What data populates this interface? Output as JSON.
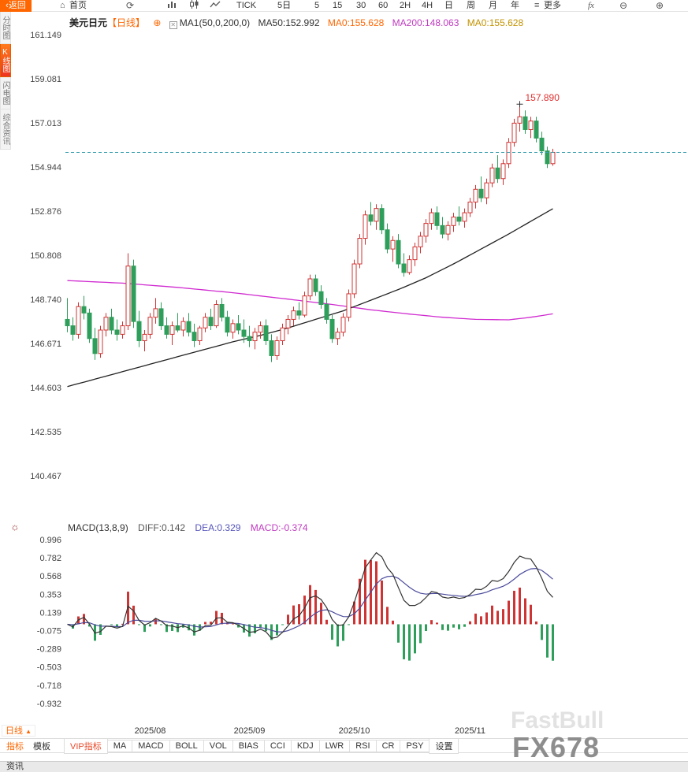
{
  "toolbar": {
    "back": "返回",
    "home": "首页",
    "periods": [
      "TICK",
      "5日",
      "5",
      "15",
      "30",
      "60",
      "2H",
      "4H",
      "日",
      "周",
      "月",
      "年"
    ],
    "more": "更多",
    "fx": "fx"
  },
  "sidebar": {
    "items": [
      {
        "label": "分时图"
      },
      {
        "label": "K线图"
      },
      {
        "label": "闪电图"
      },
      {
        "label": "综合资讯"
      }
    ],
    "active_index": 1
  },
  "chart_header": {
    "symbol": "美元日元",
    "period": "【日线】",
    "ma_settings": "MA1(50,0,200,0)",
    "ma50": "MA50:152.992",
    "ma0_a": "MA0:155.628",
    "ma200": "MA200:148.063",
    "ma0_b": "MA0:155.628"
  },
  "macd_header": {
    "title": "MACD(13,8,9)",
    "diff": "DIFF:0.142",
    "dea": "DEA:0.329",
    "macd": "MACD:-0.374"
  },
  "bottom": {
    "period_box": "日线",
    "tabs_left": [
      "指标",
      "模板"
    ],
    "tabs": [
      "VIP指标",
      "MA",
      "MACD",
      "BOLL",
      "VOL",
      "BIAS",
      "CCI",
      "KDJ",
      "LWR",
      "RSI",
      "CR",
      "PSY",
      "设置"
    ],
    "footer_tab": "资讯",
    "watermark": "FX678",
    "watermark_ghost": "FastBull"
  },
  "chart_data": {
    "type": "candlestick+macd",
    "symbol": "美元日元",
    "period": "日线",
    "y_axis_main": [
      "161.149",
      "159.081",
      "157.013",
      "154.944",
      "152.876",
      "150.808",
      "148.740",
      "146.671",
      "144.603",
      "142.535",
      "140.467"
    ],
    "y_axis_macd": [
      "0.996",
      "0.782",
      "0.568",
      "0.353",
      "0.139",
      "-0.075",
      "-0.289",
      "-0.503",
      "-0.718",
      "-0.932"
    ],
    "current_price": 155.628,
    "peak": {
      "index": 82,
      "price": 157.89,
      "label": "157.890"
    },
    "month_marks": [
      {
        "index": 15,
        "label": "2025/08"
      },
      {
        "index": 33,
        "label": "2025/09"
      },
      {
        "index": 52,
        "label": "2025/10"
      },
      {
        "index": 73,
        "label": "2025/11"
      }
    ],
    "macd_params": {
      "short": 8,
      "long": 13,
      "signal": 9
    },
    "candles": [
      [
        147.8,
        148.8,
        147.2,
        147.5
      ],
      [
        147.5,
        147.9,
        146.8,
        147.1
      ],
      [
        147.1,
        148.6,
        146.9,
        148.4
      ],
      [
        148.4,
        148.9,
        147.8,
        148.1
      ],
      [
        148.1,
        148.3,
        146.7,
        146.9
      ],
      [
        146.9,
        147.4,
        145.9,
        146.2
      ],
      [
        146.2,
        147.5,
        146.0,
        147.3
      ],
      [
        147.3,
        148.1,
        147.0,
        147.9
      ],
      [
        147.9,
        148.3,
        147.1,
        147.3
      ],
      [
        147.3,
        147.8,
        146.8,
        147.1
      ],
      [
        147.1,
        147.7,
        146.9,
        147.5
      ],
      [
        147.5,
        150.9,
        147.3,
        150.3
      ],
      [
        150.3,
        150.6,
        147.4,
        147.7
      ],
      [
        147.7,
        148.2,
        146.5,
        146.8
      ],
      [
        146.8,
        147.3,
        146.3,
        147.1
      ],
      [
        147.1,
        148.1,
        146.9,
        147.9
      ],
      [
        147.9,
        148.8,
        147.6,
        148.3
      ],
      [
        148.3,
        148.6,
        147.3,
        147.5
      ],
      [
        147.5,
        147.9,
        146.9,
        147.1
      ],
      [
        147.1,
        147.7,
        146.6,
        147.5
      ],
      [
        147.5,
        148.1,
        147.2,
        147.3
      ],
      [
        147.3,
        147.9,
        147.0,
        147.7
      ],
      [
        147.7,
        148.1,
        147.0,
        147.2
      ],
      [
        147.2,
        147.6,
        146.5,
        146.8
      ],
      [
        146.8,
        147.5,
        146.6,
        147.4
      ],
      [
        147.4,
        148.1,
        147.2,
        147.9
      ],
      [
        147.9,
        148.3,
        147.3,
        147.5
      ],
      [
        147.5,
        148.7,
        147.4,
        148.5
      ],
      [
        148.5,
        148.8,
        147.7,
        147.9
      ],
      [
        147.9,
        148.2,
        147.0,
        147.2
      ],
      [
        147.2,
        147.8,
        146.9,
        147.6
      ],
      [
        147.6,
        148.0,
        147.1,
        147.3
      ],
      [
        147.3,
        147.8,
        146.7,
        147.0
      ],
      [
        147.0,
        147.5,
        146.5,
        146.8
      ],
      [
        146.8,
        147.4,
        146.4,
        147.2
      ],
      [
        147.2,
        147.7,
        146.9,
        147.5
      ],
      [
        147.5,
        147.8,
        146.6,
        146.8
      ],
      [
        146.8,
        147.1,
        145.8,
        146.1
      ],
      [
        146.1,
        147.0,
        145.9,
        146.8
      ],
      [
        146.8,
        147.6,
        146.6,
        147.4
      ],
      [
        147.4,
        148.0,
        147.1,
        147.8
      ],
      [
        147.8,
        148.4,
        147.5,
        148.2
      ],
      [
        148.2,
        148.6,
        147.8,
        148.0
      ],
      [
        148.0,
        149.1,
        147.9,
        148.9
      ],
      [
        148.9,
        149.9,
        148.7,
        149.7
      ],
      [
        149.7,
        149.9,
        148.9,
        149.1
      ],
      [
        149.1,
        149.4,
        148.3,
        148.5
      ],
      [
        148.5,
        148.8,
        147.6,
        147.8
      ],
      [
        147.8,
        148.0,
        146.7,
        146.9
      ],
      [
        146.9,
        147.4,
        146.6,
        147.2
      ],
      [
        147.2,
        148.1,
        147.0,
        147.9
      ],
      [
        147.9,
        149.2,
        147.7,
        149.0
      ],
      [
        149.0,
        150.6,
        148.8,
        150.4
      ],
      [
        150.4,
        151.8,
        150.2,
        151.6
      ],
      [
        151.6,
        152.9,
        151.3,
        152.7
      ],
      [
        152.7,
        153.3,
        152.2,
        152.4
      ],
      [
        152.4,
        153.2,
        152.0,
        153.0
      ],
      [
        153.0,
        153.2,
        151.8,
        152.0
      ],
      [
        152.0,
        152.3,
        150.9,
        151.1
      ],
      [
        151.1,
        151.7,
        150.5,
        151.5
      ],
      [
        151.5,
        151.8,
        150.2,
        150.4
      ],
      [
        150.4,
        150.9,
        149.8,
        150.0
      ],
      [
        150.0,
        150.8,
        149.9,
        150.6
      ],
      [
        150.6,
        151.4,
        150.3,
        151.2
      ],
      [
        151.2,
        151.9,
        150.9,
        151.7
      ],
      [
        151.7,
        152.5,
        151.4,
        152.3
      ],
      [
        152.3,
        153.0,
        152.0,
        152.8
      ],
      [
        152.8,
        153.1,
        152.0,
        152.2
      ],
      [
        152.2,
        152.6,
        151.6,
        151.8
      ],
      [
        151.8,
        152.4,
        151.5,
        152.2
      ],
      [
        152.2,
        152.8,
        151.9,
        152.6
      ],
      [
        152.6,
        153.1,
        152.2,
        152.4
      ],
      [
        152.4,
        153.0,
        152.1,
        152.8
      ],
      [
        152.8,
        153.5,
        152.6,
        153.3
      ],
      [
        153.3,
        154.1,
        153.0,
        153.9
      ],
      [
        153.9,
        154.5,
        153.3,
        153.5
      ],
      [
        153.5,
        154.4,
        153.2,
        154.2
      ],
      [
        154.2,
        155.1,
        154.0,
        154.9
      ],
      [
        154.9,
        155.5,
        154.2,
        154.4
      ],
      [
        154.4,
        155.3,
        154.1,
        155.1
      ],
      [
        155.1,
        156.3,
        154.9,
        156.1
      ],
      [
        156.1,
        157.2,
        155.9,
        157.0
      ],
      [
        157.0,
        157.89,
        156.6,
        157.3
      ],
      [
        157.3,
        157.6,
        156.5,
        156.7
      ],
      [
        156.7,
        157.3,
        156.3,
        157.1
      ],
      [
        157.1,
        157.3,
        156.1,
        156.3
      ],
      [
        156.3,
        156.6,
        155.5,
        155.7
      ],
      [
        155.7,
        155.9,
        154.9,
        155.1
      ],
      [
        155.1,
        155.8,
        155.0,
        155.628
      ]
    ],
    "ma50_points": [
      [
        0,
        144.65
      ],
      [
        5,
        145.0
      ],
      [
        10,
        145.35
      ],
      [
        15,
        145.7
      ],
      [
        20,
        146.05
      ],
      [
        25,
        146.4
      ],
      [
        30,
        146.75
      ],
      [
        35,
        147.05
      ],
      [
        40,
        147.4
      ],
      [
        45,
        147.8
      ],
      [
        50,
        148.2
      ],
      [
        55,
        148.7
      ],
      [
        60,
        149.2
      ],
      [
        65,
        149.75
      ],
      [
        70,
        150.4
      ],
      [
        75,
        151.1
      ],
      [
        80,
        151.8
      ],
      [
        84,
        152.4
      ],
      [
        88,
        152.99
      ]
    ],
    "ma200_points": [
      [
        0,
        149.62
      ],
      [
        10,
        149.5
      ],
      [
        20,
        149.3
      ],
      [
        30,
        149.05
      ],
      [
        40,
        148.75
      ],
      [
        48,
        148.5
      ],
      [
        55,
        148.25
      ],
      [
        62,
        148.05
      ],
      [
        68,
        147.9
      ],
      [
        74,
        147.8
      ],
      [
        80,
        147.78
      ],
      [
        84,
        147.9
      ],
      [
        88,
        148.06
      ]
    ],
    "colors": {
      "up": "#cf3434",
      "down": "#2e9e5b",
      "ma50": "#222222",
      "ma200": "#d02ad0",
      "diff": "#333333",
      "dea": "#4a4a9c",
      "price_line": "#3aa0b0",
      "peak_label": "#e03030",
      "axis": "#444444"
    }
  }
}
